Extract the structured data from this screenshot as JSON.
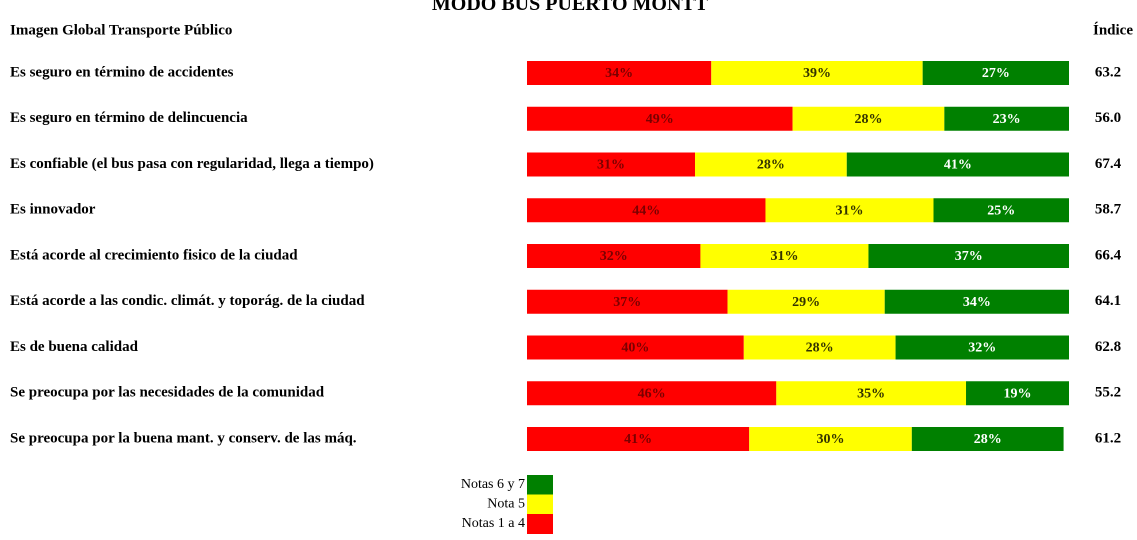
{
  "chart_data": {
    "type": "bar",
    "stacked": true,
    "orientation": "horizontal",
    "title": "MODO BUS PUERTO MONTT",
    "subtitle": "Imagen Global Transporte Público",
    "categories": [
      "Es seguro en término de accidentes",
      "Es seguro en término de delincuencia",
      "Es confiable (el bus pasa con regularidad, llega a tiempo)",
      "Es innovador",
      "Está acorde al crecimiento fisico de la ciudad",
      "Está acorde a las condic. climát. y toporág. de la ciudad",
      "Es de buena calidad",
      "Se preocupa por las necesidades de la comunidad",
      "Se preocupa por la buena mant. y conserv. de las máq."
    ],
    "xlim": [
      0,
      100
    ],
    "series": [
      {
        "name": "Notas 1 a 4",
        "color": "#ff0000",
        "label_color": "#7a0000",
        "values": [
          34,
          49,
          31,
          44,
          32,
          37,
          40,
          46,
          41
        ],
        "value_labels": [
          "34%",
          "49%",
          "31%",
          "44%",
          "32%",
          "37%",
          "40%",
          "46%",
          "41%"
        ]
      },
      {
        "name": "Nota 5",
        "color": "#ffff00",
        "label_color": "#333300",
        "values": [
          39,
          28,
          28,
          31,
          31,
          29,
          28,
          35,
          30
        ],
        "value_labels": [
          "39%",
          "28%",
          "28%",
          "31%",
          "31%",
          "29%",
          "28%",
          "35%",
          "30%"
        ]
      },
      {
        "name": "Notas 6 y 7",
        "color": "#008000",
        "label_color": "#ffffff",
        "values": [
          27,
          23,
          41,
          25,
          37,
          34,
          32,
          19,
          28
        ],
        "value_labels": [
          "27%",
          "23%",
          "41%",
          "25%",
          "37%",
          "34%",
          "32%",
          "19%",
          "28%"
        ]
      }
    ],
    "index": {
      "name": "Índice",
      "values": [
        63.2,
        56.0,
        67.4,
        58.7,
        66.4,
        64.1,
        62.8,
        55.2,
        61.2
      ],
      "value_labels": [
        "63.2",
        "56.0",
        "67.4",
        "58.7",
        "66.4",
        "64.1",
        "62.8",
        "55.2",
        "61.2"
      ]
    }
  }
}
